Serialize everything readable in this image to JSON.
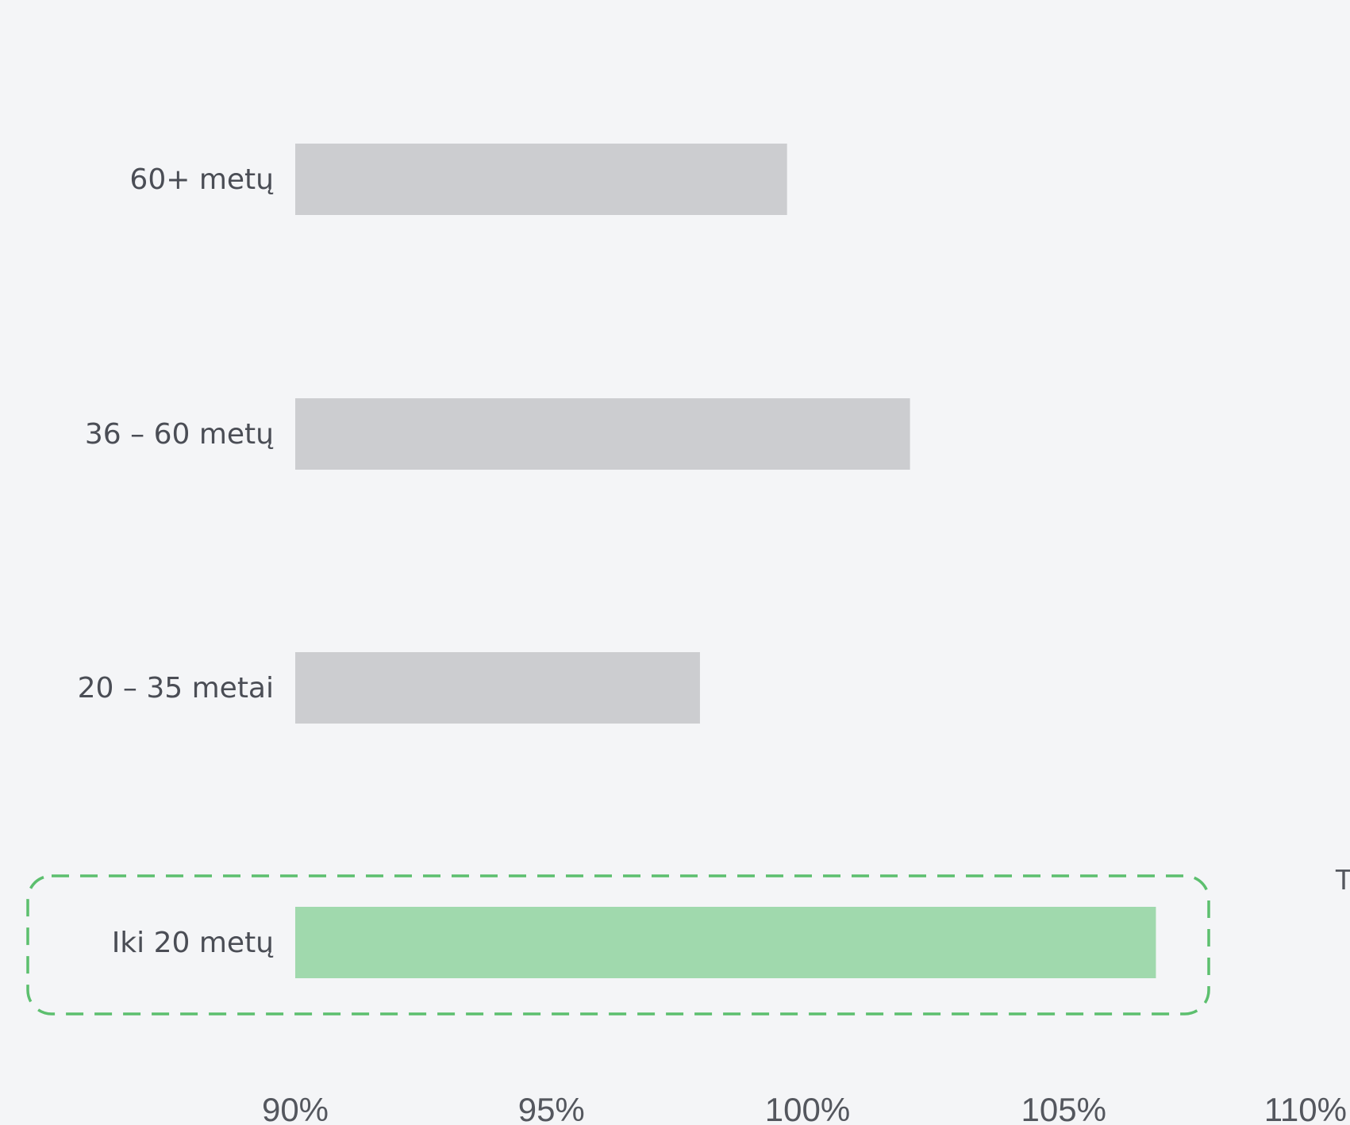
{
  "chart_data": {
    "type": "bar",
    "orientation": "horizontal",
    "categories": [
      "60+ metų",
      "36 – 60 metų",
      "20 – 35 metai",
      "Iki 20 metų"
    ],
    "values": [
      99.6,
      102.0,
      97.9,
      106.8
    ],
    "highlighted_category": "Iki 20 metų",
    "xlim": [
      90,
      110
    ],
    "xticks": [
      "90%",
      "95%",
      "100%",
      "105%",
      "110%"
    ],
    "xtick_values": [
      90,
      95,
      100,
      105,
      110
    ],
    "edge_text": "T",
    "grid": false,
    "colors": {
      "bar": "#cccdd0",
      "highlight_bar": "#a0d9ad",
      "highlight_outline": "#5cbf6e",
      "background": "#f4f5f7"
    }
  }
}
